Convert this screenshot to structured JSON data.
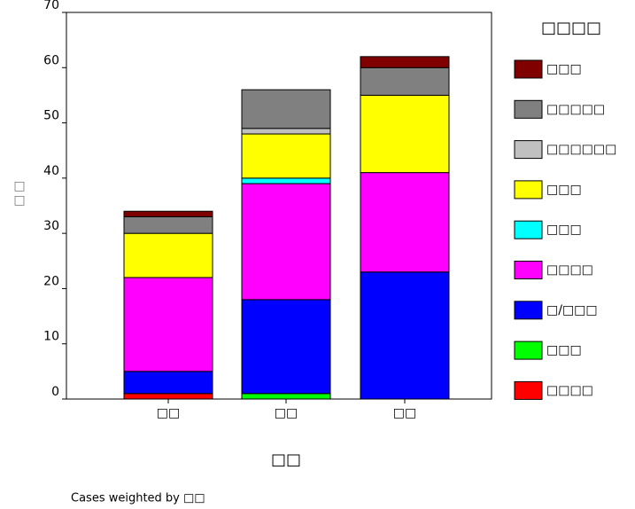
{
  "chart_data": {
    "type": "bar",
    "stacked": true,
    "legend_title": "□□□□",
    "x_label": "□□",
    "y_label": "□□",
    "footnote": "Cases weighted by □□",
    "categories": [
      "□□",
      "□□",
      "□□"
    ],
    "series": [
      {
        "name": "□□□□",
        "color": "#ff0000",
        "values": [
          1,
          0,
          0
        ]
      },
      {
        "name": "□□□",
        "color": "#00ff00",
        "values": [
          0,
          1,
          0
        ]
      },
      {
        "name": "□/□□□",
        "color": "#0000ff",
        "values": [
          4,
          17,
          23
        ]
      },
      {
        "name": "□□□□",
        "color": "#ff00ff",
        "values": [
          17,
          21,
          18
        ]
      },
      {
        "name": "□□□",
        "color": "#00ffff",
        "values": [
          0,
          1,
          0
        ]
      },
      {
        "name": "□□□",
        "color": "#ffff00",
        "values": [
          8,
          8,
          14
        ]
      },
      {
        "name": "□□□□□□",
        "color": "#c0c0c0",
        "values": [
          0,
          1,
          0
        ]
      },
      {
        "name": "□□□□□",
        "color": "#808080",
        "values": [
          3,
          7,
          5
        ]
      },
      {
        "name": "□□□",
        "color": "#800000",
        "values": [
          1,
          0,
          2
        ]
      }
    ],
    "ylim": [
      0,
      70
    ],
    "yticks": [
      0,
      10,
      20,
      30,
      40,
      50,
      60,
      70
    ]
  }
}
